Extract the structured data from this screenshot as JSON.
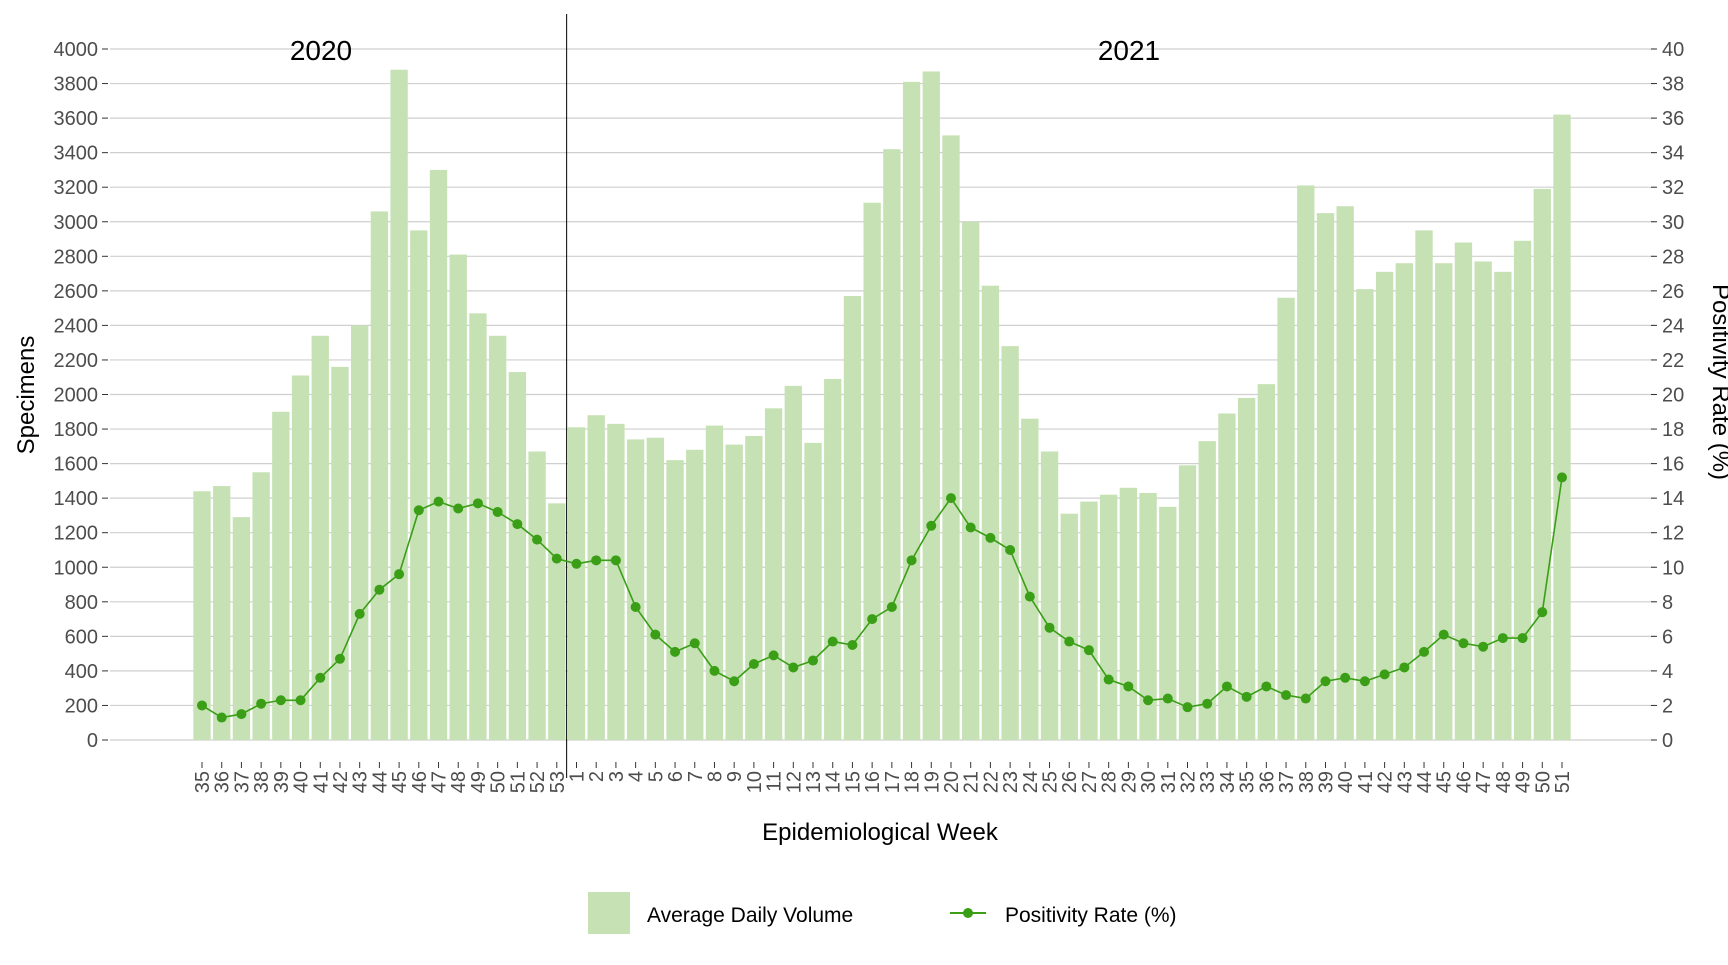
{
  "chart_data": {
    "type": "bar",
    "xlabel": "Epidemiological Week",
    "ylabel": "Specimens",
    "y2label": "Positivity Rate (%)",
    "ylim": [
      0,
      4000
    ],
    "y2lim": [
      0,
      40
    ],
    "yticks": [
      0,
      200,
      400,
      600,
      800,
      1000,
      1200,
      1400,
      1600,
      1800,
      2000,
      2200,
      2400,
      2600,
      2800,
      3000,
      3200,
      3400,
      3600,
      3800,
      4000
    ],
    "y2ticks": [
      0,
      2,
      4,
      6,
      8,
      10,
      12,
      14,
      16,
      18,
      20,
      22,
      24,
      26,
      28,
      30,
      32,
      34,
      36,
      38,
      40
    ],
    "grid": true,
    "legend_position": "bottom",
    "year_labels": [
      "2020",
      "2021"
    ],
    "year_split_after_index": 18,
    "categories": [
      "35",
      "36",
      "37",
      "38",
      "39",
      "40",
      "41",
      "42",
      "43",
      "44",
      "45",
      "46",
      "47",
      "48",
      "49",
      "50",
      "51",
      "52",
      "53",
      "1",
      "2",
      "3",
      "4",
      "5",
      "6",
      "7",
      "8",
      "9",
      "10",
      "11",
      "12",
      "13",
      "14",
      "15",
      "16",
      "17",
      "18",
      "19",
      "20",
      "21",
      "22",
      "23",
      "24",
      "25",
      "26",
      "27",
      "28",
      "29",
      "30",
      "31",
      "32",
      "33",
      "34",
      "35",
      "36",
      "37",
      "38",
      "39",
      "40",
      "41",
      "42",
      "43",
      "44",
      "45",
      "46",
      "47",
      "48",
      "49",
      "50",
      "51"
    ],
    "series": [
      {
        "name": "Average Daily Volume",
        "type": "bar",
        "axis": "left",
        "color": "#c6e2b4",
        "values": [
          1440,
          1470,
          1290,
          1550,
          1900,
          2110,
          2340,
          2160,
          2400,
          3060,
          3880,
          2950,
          3300,
          2810,
          2470,
          2340,
          2130,
          1670,
          1370,
          1810,
          1880,
          1830,
          1740,
          1750,
          1620,
          1680,
          1820,
          1710,
          1760,
          1920,
          2050,
          1720,
          2090,
          2570,
          3110,
          3420,
          3810,
          3870,
          3500,
          3000,
          2630,
          2280,
          1860,
          1670,
          1310,
          1380,
          1420,
          1460,
          1430,
          1350,
          1590,
          1730,
          1890,
          1980,
          2060,
          2560,
          3210,
          3050,
          3090,
          2610,
          2710,
          2760,
          2950,
          2760,
          2880,
          2770,
          2710,
          2890,
          3190,
          3620
        ]
      },
      {
        "name": "Positivity Rate (%)",
        "type": "line",
        "axis": "right",
        "color": "#3a9e16",
        "values": [
          2.0,
          1.3,
          1.5,
          2.1,
          2.3,
          2.3,
          3.6,
          4.7,
          7.3,
          8.7,
          9.6,
          13.3,
          13.8,
          13.4,
          13.7,
          13.2,
          12.5,
          11.6,
          10.5,
          10.2,
          10.4,
          10.4,
          7.7,
          6.1,
          5.1,
          5.6,
          4.0,
          3.4,
          4.4,
          4.9,
          4.2,
          4.6,
          5.7,
          5.5,
          7.0,
          7.7,
          10.4,
          12.4,
          14.0,
          12.3,
          11.7,
          11.0,
          8.3,
          6.5,
          5.7,
          5.2,
          3.5,
          3.1,
          2.3,
          2.4,
          1.9,
          2.1,
          3.1,
          2.5,
          3.1,
          2.6,
          2.4,
          3.4,
          3.6,
          3.4,
          3.8,
          4.2,
          5.1,
          6.1,
          5.6,
          5.4,
          5.9,
          5.9,
          7.4,
          15.2
        ]
      }
    ]
  }
}
